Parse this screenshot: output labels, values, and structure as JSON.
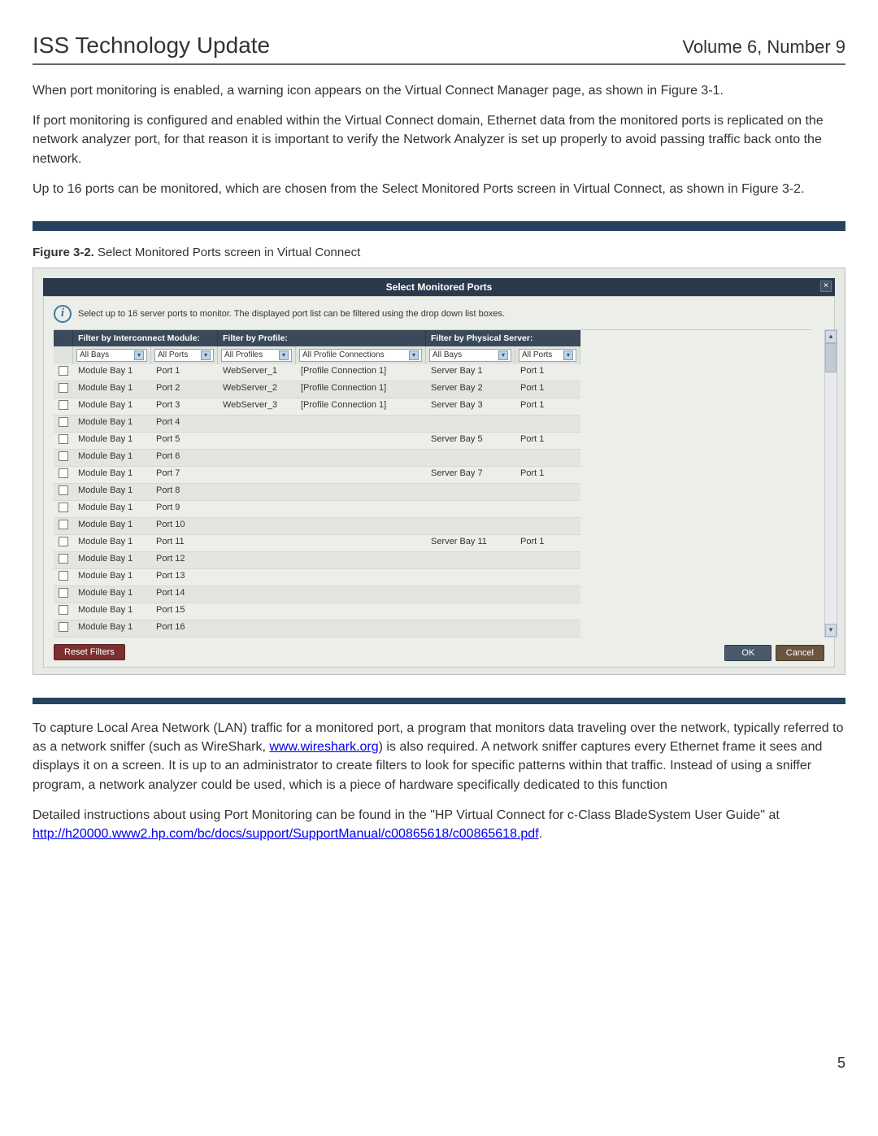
{
  "header": {
    "title": "ISS Technology Update",
    "volume": "Volume 6, Number 9"
  },
  "paragraphs": {
    "p1": "When port monitoring is enabled, a warning icon appears on the Virtual Connect Manager page, as shown in Figure 3-1.",
    "p2": "If port monitoring is configured and enabled within the Virtual Connect domain, Ethernet data from the monitored ports is replicated on the network analyzer port, for that reason it is important to verify the Network Analyzer is set up properly to avoid passing traffic back onto the network.",
    "p3": "Up to 16 ports can be monitored, which are chosen from the Select Monitored Ports screen in Virtual Connect, as shown in Figure 3-2.",
    "p4_a": "To capture Local Area Network (LAN) traffic for a monitored port, a program that monitors data traveling over the network, typically referred to as a network sniffer (such as WireShark, ",
    "p4_link": "www.wireshark.org",
    "p4_b": ") is also required. A network sniffer captures every Ethernet frame it sees and displays it on a screen. It is up to an administrator to create filters to look for specific patterns within that traffic. Instead of using a sniffer program, a network analyzer could be used, which is a piece of hardware specifically dedicated to this function",
    "p5_a": "Detailed instructions about using Port Monitoring can be found in the \"HP Virtual Connect for c-Class BladeSystem User Guide\" at ",
    "p5_link": "http://h20000.www2.hp.com/bc/docs/support/SupportManual/c00865618/c00865618.pdf",
    "p5_b": "."
  },
  "figure": {
    "caption_bold": "Figure 3-2.",
    "caption_rest": " Select Monitored Ports screen in Virtual Connect",
    "window_title": "Select Monitored Ports",
    "close_glyph": "×",
    "info_glyph": "i",
    "info_text": "Select up to 16 server ports to monitor. The displayed port list can be filtered using the drop down list boxes.",
    "headers": {
      "interconnect": "Filter by Interconnect Module:",
      "profile": "Filter by Profile:",
      "server": "Filter by Physical Server:"
    },
    "filters": {
      "bays": "All Bays",
      "ports": "All Ports",
      "profiles": "All Profiles",
      "connections": "All Profile Connections",
      "server_bays": "All Bays",
      "server_ports": "All Ports"
    },
    "rows": [
      {
        "mod": "Module Bay 1",
        "port": "Port 1",
        "profile": "WebServer_1",
        "conn": "[Profile Connection 1]",
        "srv": "Server Bay 1",
        "sport": "Port 1"
      },
      {
        "mod": "Module Bay 1",
        "port": "Port 2",
        "profile": "WebServer_2",
        "conn": "[Profile Connection 1]",
        "srv": "Server Bay 2",
        "sport": "Port 1"
      },
      {
        "mod": "Module Bay 1",
        "port": "Port 3",
        "profile": "WebServer_3",
        "conn": "[Profile Connection 1]",
        "srv": "Server Bay 3",
        "sport": "Port 1"
      },
      {
        "mod": "Module Bay 1",
        "port": "Port 4",
        "profile": "",
        "conn": "",
        "srv": "",
        "sport": ""
      },
      {
        "mod": "Module Bay 1",
        "port": "Port 5",
        "profile": "",
        "conn": "",
        "srv": "Server Bay 5",
        "sport": "Port 1"
      },
      {
        "mod": "Module Bay 1",
        "port": "Port 6",
        "profile": "",
        "conn": "",
        "srv": "",
        "sport": ""
      },
      {
        "mod": "Module Bay 1",
        "port": "Port 7",
        "profile": "",
        "conn": "",
        "srv": "Server Bay 7",
        "sport": "Port 1"
      },
      {
        "mod": "Module Bay 1",
        "port": "Port 8",
        "profile": "",
        "conn": "",
        "srv": "",
        "sport": ""
      },
      {
        "mod": "Module Bay 1",
        "port": "Port 9",
        "profile": "",
        "conn": "",
        "srv": "",
        "sport": ""
      },
      {
        "mod": "Module Bay 1",
        "port": "Port 10",
        "profile": "",
        "conn": "",
        "srv": "",
        "sport": ""
      },
      {
        "mod": "Module Bay 1",
        "port": "Port 11",
        "profile": "",
        "conn": "",
        "srv": "Server Bay 11",
        "sport": "Port 1"
      },
      {
        "mod": "Module Bay 1",
        "port": "Port 12",
        "profile": "",
        "conn": "",
        "srv": "",
        "sport": ""
      },
      {
        "mod": "Module Bay 1",
        "port": "Port 13",
        "profile": "",
        "conn": "",
        "srv": "",
        "sport": ""
      },
      {
        "mod": "Module Bay 1",
        "port": "Port 14",
        "profile": "",
        "conn": "",
        "srv": "",
        "sport": ""
      },
      {
        "mod": "Module Bay 1",
        "port": "Port 15",
        "profile": "",
        "conn": "",
        "srv": "",
        "sport": ""
      },
      {
        "mod": "Module Bay 1",
        "port": "Port 16",
        "profile": "",
        "conn": "",
        "srv": "",
        "sport": ""
      }
    ],
    "buttons": {
      "reset": "Reset Filters",
      "ok": "OK",
      "cancel": "Cancel"
    },
    "scroll": {
      "up": "▴",
      "down": "▾"
    },
    "chevron": "▾"
  },
  "page_number": "5",
  "colors": {
    "divider": "#27425f",
    "titlebar": "#2a3a4a",
    "panel_bg": "#eceee9"
  }
}
